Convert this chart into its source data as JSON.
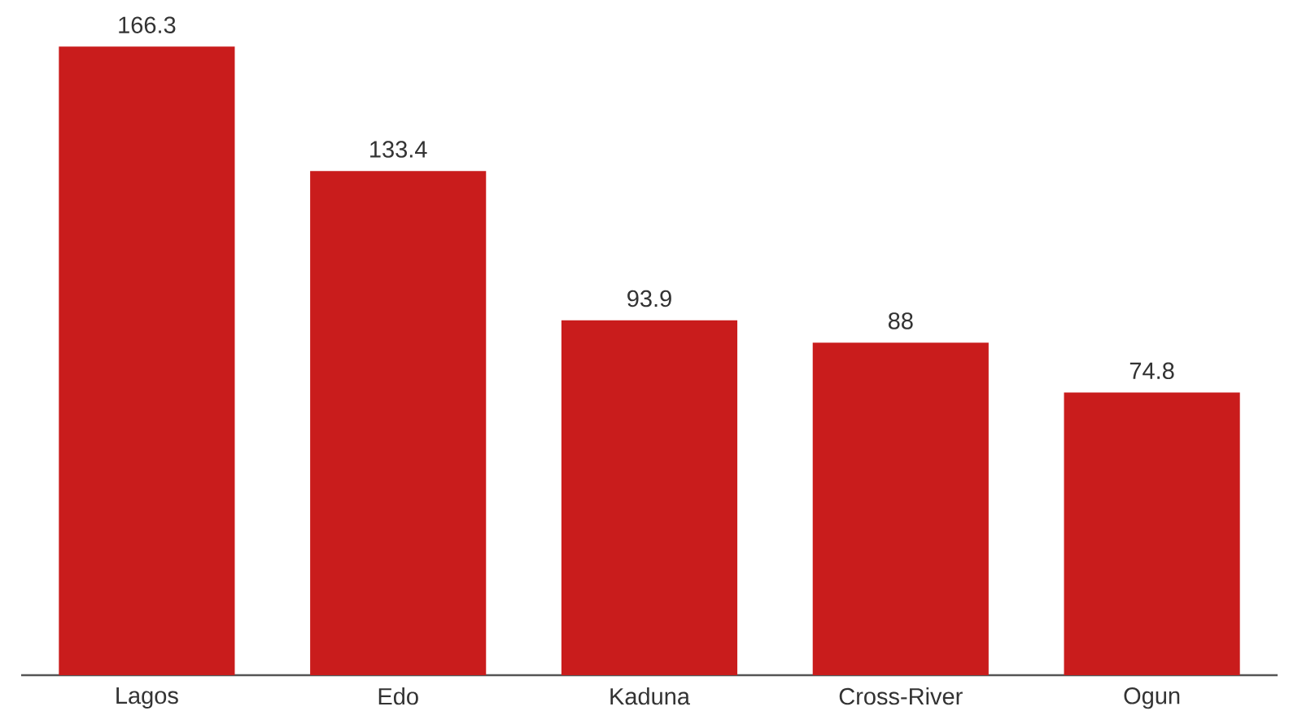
{
  "chart_data": {
    "type": "bar",
    "categories": [
      "Lagos",
      "Edo",
      "Kaduna",
      "Cross-River",
      "Ogun"
    ],
    "values": [
      166.3,
      133.4,
      93.9,
      88,
      74.8
    ],
    "color": "#c91c1c",
    "data_labels": true
  }
}
